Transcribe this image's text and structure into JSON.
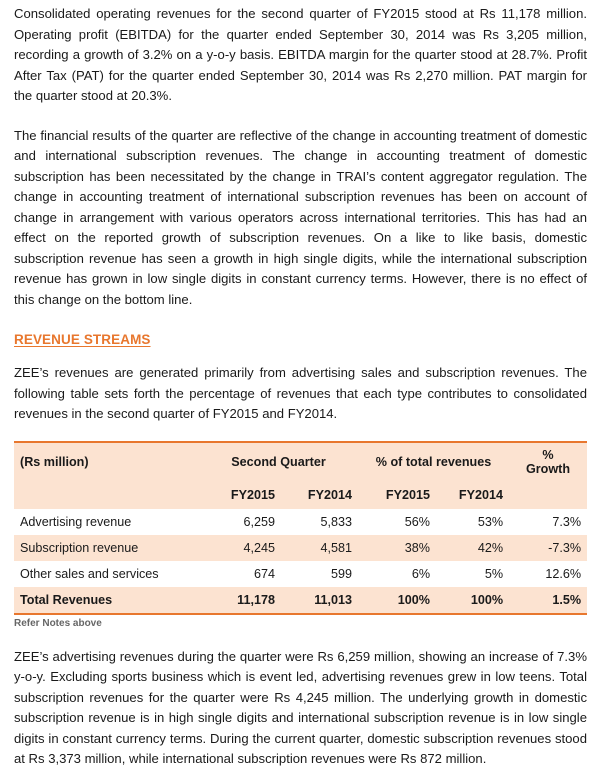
{
  "paragraphs": {
    "p1": "Consolidated operating revenues for the second quarter of FY2015 stood at Rs 11,178 million. Operating profit (EBITDA) for the quarter ended September 30, 2014 was Rs 3,205 million, recording a growth of 3.2% on a y-o-y basis. EBITDA margin for the quarter stood at 28.7%. Profit After Tax (PAT) for the quarter ended September 30, 2014 was Rs 2,270 million. PAT margin for the quarter stood at 20.3%.",
    "p2": "The financial results of the quarter are reflective of the change in accounting treatment of domestic and international subscription revenues. The change in accounting treatment of domestic subscription has been necessitated by the change in TRAI’s content aggregator regulation. The change in accounting treatment of international subscription revenues has been on account of change in arrangement with various operators across international territories. This has had an effect on the reported growth of subscription revenues. On a like to like basis, domestic subscription revenue has seen a growth in high single digits, while the international subscription revenue has grown in low single digits in constant currency terms. However, there is no effect of this change on the bottom line.",
    "p3": "ZEE’s revenues are generated primarily from advertising sales and subscription revenues. The following table sets forth the percentage of revenues that each type contributes to consolidated revenues in the second quarter of FY2015 and FY2014.",
    "p4": "ZEE’s advertising revenues during the quarter were Rs 6,259 million, showing an increase of 7.3% y-o-y. Excluding sports business which is event led, advertising revenues grew in low teens. Total subscription revenues for the quarter were Rs 4,245 million. The underlying growth in domestic subscription revenue is in high single digits and international subscription revenue is in low single digits in constant currency terms. During the current quarter, domestic subscription revenues stood at Rs 3,373 million, while international subscription revenues were Rs 872 million."
  },
  "section_heading": "REVENUE STREAMS",
  "table": {
    "unit_label": "(Rs million)",
    "group_second_quarter": "Second Quarter",
    "group_pct_total": "% of total revenues",
    "growth_line1": "%",
    "growth_line2": "Growth",
    "year_a": "FY2015",
    "year_b": "FY2014",
    "year_c": "FY2015",
    "year_d": "FY2014",
    "rows": [
      {
        "label": "Advertising revenue",
        "fy2015": "6,259",
        "fy2014": "5,833",
        "pct2015": "56%",
        "pct2014": "53%",
        "growth": "7.3%"
      },
      {
        "label": "Subscription revenue",
        "fy2015": "4,245",
        "fy2014": "4,581",
        "pct2015": "38%",
        "pct2014": "42%",
        "growth": "-7.3%"
      },
      {
        "label": "Other sales and services",
        "fy2015": "674",
        "fy2014": "599",
        "pct2015": "6%",
        "pct2014": "5%",
        "growth": "12.6%"
      },
      {
        "label": "Total Revenues",
        "fy2015": "11,178",
        "fy2014": "11,013",
        "pct2015": "100%",
        "pct2014": "100%",
        "growth": "1.5%"
      }
    ]
  },
  "note": "Refer Notes above"
}
